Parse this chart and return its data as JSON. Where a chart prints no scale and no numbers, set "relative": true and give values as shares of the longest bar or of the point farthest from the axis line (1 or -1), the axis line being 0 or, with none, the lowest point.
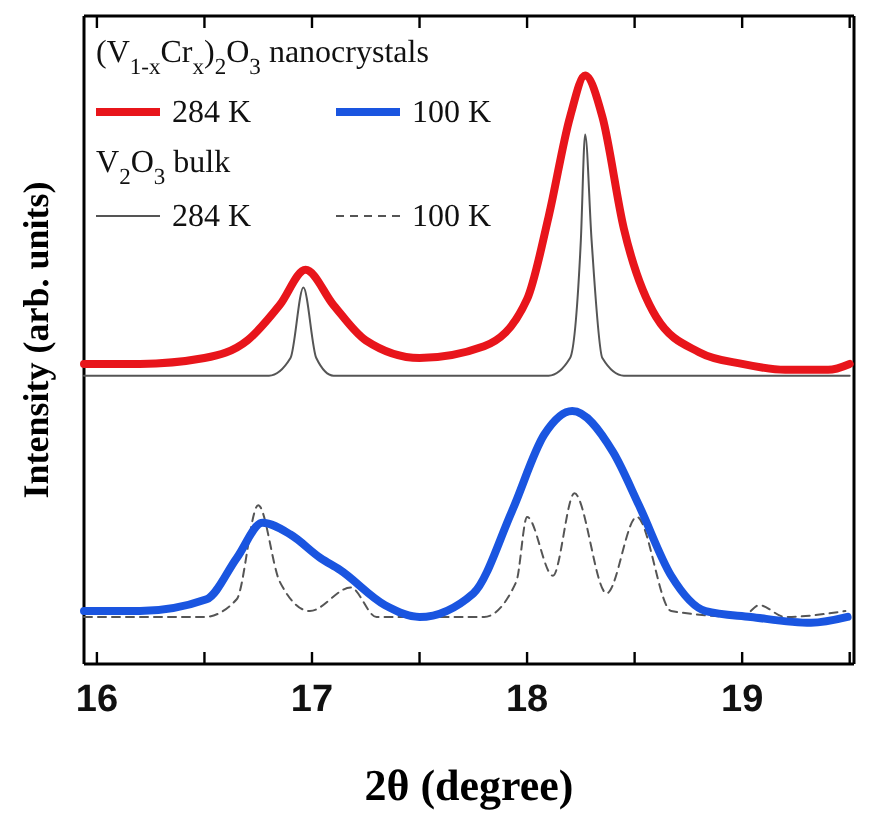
{
  "chart_data": {
    "type": "line",
    "relative": true,
    "xlabel": "2θ  (degree)",
    "ylabel": "Intensity (arb. units)",
    "xlim": [
      15.94,
      19.52
    ],
    "xticks": [
      16,
      {
        "value": 16.5,
        "label": null
      },
      17,
      {
        "value": 17.5,
        "label": null
      },
      18,
      {
        "value": 18.5,
        "label": null
      },
      19,
      {
        "value": 19.5,
        "label": null
      }
    ],
    "tick_labels": "x",
    "legend": "top left",
    "annotations": [
      "(V$_{1-x}$Cr$_{x}$)$_{2}$O$_{3}$ nanocrystals",
      "V$_{2}$O$_{3}$ bulk"
    ],
    "series": [
      {
        "name": "284 K",
        "color": "#e8151b",
        "line_style": "solid",
        "x": [
          15.94,
          16.2,
          16.5,
          16.7,
          16.85,
          16.97,
          17.1,
          17.25,
          17.5,
          17.8,
          18.0,
          18.1,
          18.2,
          18.27,
          18.35,
          18.45,
          18.6,
          18.8,
          19.0,
          19.2,
          19.4,
          19.5
        ],
        "values": [
          0.51,
          0.51,
          0.52,
          0.55,
          0.61,
          0.67,
          0.61,
          0.55,
          0.52,
          0.54,
          0.62,
          0.76,
          0.93,
          1.0,
          0.93,
          0.74,
          0.59,
          0.53,
          0.51,
          0.5,
          0.5,
          0.51
        ]
      },
      {
        "name": "100 K",
        "color": "#1a55e0",
        "line_style": "solid",
        "x": [
          15.94,
          16.2,
          16.51,
          16.65,
          16.77,
          16.9,
          17.04,
          17.13,
          17.34,
          17.5,
          17.75,
          17.93,
          18.08,
          18.21,
          18.4,
          18.52,
          18.67,
          18.83,
          19.04,
          19.32,
          19.49
        ],
        "values": [
          0.09,
          0.09,
          0.11,
          0.18,
          0.24,
          0.22,
          0.18,
          0.16,
          0.1,
          0.08,
          0.12,
          0.26,
          0.39,
          0.43,
          0.36,
          0.27,
          0.15,
          0.09,
          0.08,
          0.07,
          0.08
        ]
      },
      {
        "name": "284 K",
        "color": "#555555",
        "line_style": "solid",
        "x": [
          15.94,
          16.8,
          16.9,
          16.96,
          17.02,
          17.1,
          18.1,
          18.2,
          18.25,
          18.27,
          18.3,
          18.35,
          18.45,
          19.5
        ],
        "values": [
          0.49,
          0.49,
          0.52,
          0.64,
          0.52,
          0.49,
          0.49,
          0.52,
          0.72,
          0.9,
          0.72,
          0.52,
          0.49,
          0.49
        ]
      },
      {
        "name": "100 K",
        "color": "#555555",
        "line_style": "dashed",
        "x": [
          15.94,
          16.5,
          16.65,
          16.75,
          16.85,
          16.99,
          17.18,
          17.3,
          17.8,
          17.95,
          18.0,
          18.12,
          18.22,
          18.37,
          18.51,
          18.67,
          19.0,
          19.08,
          19.2,
          19.48
        ],
        "values": [
          0.08,
          0.08,
          0.11,
          0.27,
          0.14,
          0.09,
          0.13,
          0.08,
          0.08,
          0.14,
          0.25,
          0.15,
          0.29,
          0.12,
          0.25,
          0.09,
          0.08,
          0.1,
          0.08,
          0.09
        ]
      }
    ]
  }
}
